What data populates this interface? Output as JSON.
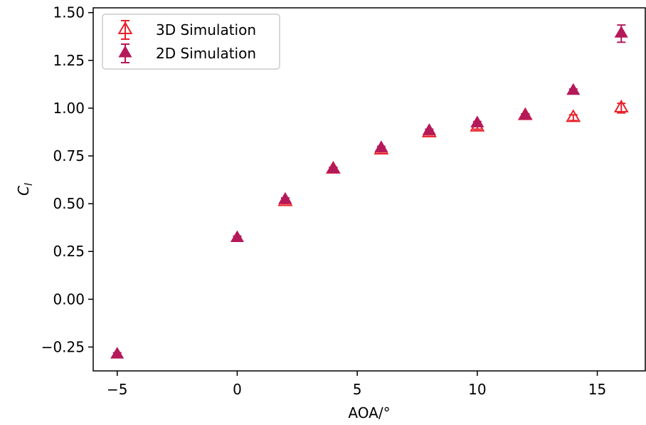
{
  "chart_data": {
    "type": "scatter",
    "title": "",
    "xlabel": "AOA/°",
    "ylabel_main": "C",
    "ylabel_sub": "l",
    "xlim": [
      -6,
      17
    ],
    "ylim": [
      -0.375,
      1.525
    ],
    "xticks": [
      -5,
      0,
      5,
      10,
      15
    ],
    "xtick_labels": [
      "−5",
      "0",
      "5",
      "10",
      "15"
    ],
    "yticks": [
      -0.25,
      0,
      0.25,
      0.5,
      0.75,
      1.0,
      1.25,
      1.5
    ],
    "ytick_labels": [
      "−0.25",
      "0.00",
      "0.25",
      "0.50",
      "0.75",
      "1.00",
      "1.25",
      "1.50"
    ],
    "grid": false,
    "legend_position": "top-left",
    "series": [
      {
        "name": "3D Simulation",
        "color": "#e8202a",
        "marker": "open-triangle",
        "points": [
          {
            "x": 2,
            "y": 0.51,
            "err": 0.01
          },
          {
            "x": 4,
            "y": 0.68,
            "err": 0.01
          },
          {
            "x": 6,
            "y": 0.78,
            "err": 0.01
          },
          {
            "x": 8,
            "y": 0.87,
            "err": 0.01
          },
          {
            "x": 10,
            "y": 0.9,
            "err": 0.01
          },
          {
            "x": 12,
            "y": 0.96,
            "err": 0.01
          },
          {
            "x": 14,
            "y": 0.95,
            "err": 0.015
          },
          {
            "x": 16,
            "y": 1.0,
            "err": 0.025
          }
        ]
      },
      {
        "name": "2D Simulation",
        "color": "#b5195a",
        "marker": "filled-triangle",
        "points": [
          {
            "x": -5,
            "y": -0.29,
            "err": 0.01
          },
          {
            "x": 0,
            "y": 0.32,
            "err": 0.01
          },
          {
            "x": 2,
            "y": 0.52,
            "err": 0.01
          },
          {
            "x": 4,
            "y": 0.68,
            "err": 0.01
          },
          {
            "x": 6,
            "y": 0.79,
            "err": 0.01
          },
          {
            "x": 8,
            "y": 0.88,
            "err": 0.01
          },
          {
            "x": 10,
            "y": 0.92,
            "err": 0.01
          },
          {
            "x": 12,
            "y": 0.96,
            "err": 0.01
          },
          {
            "x": 14,
            "y": 1.09,
            "err": 0.01
          },
          {
            "x": 16,
            "y": 1.39,
            "err": 0.045
          }
        ]
      }
    ]
  }
}
